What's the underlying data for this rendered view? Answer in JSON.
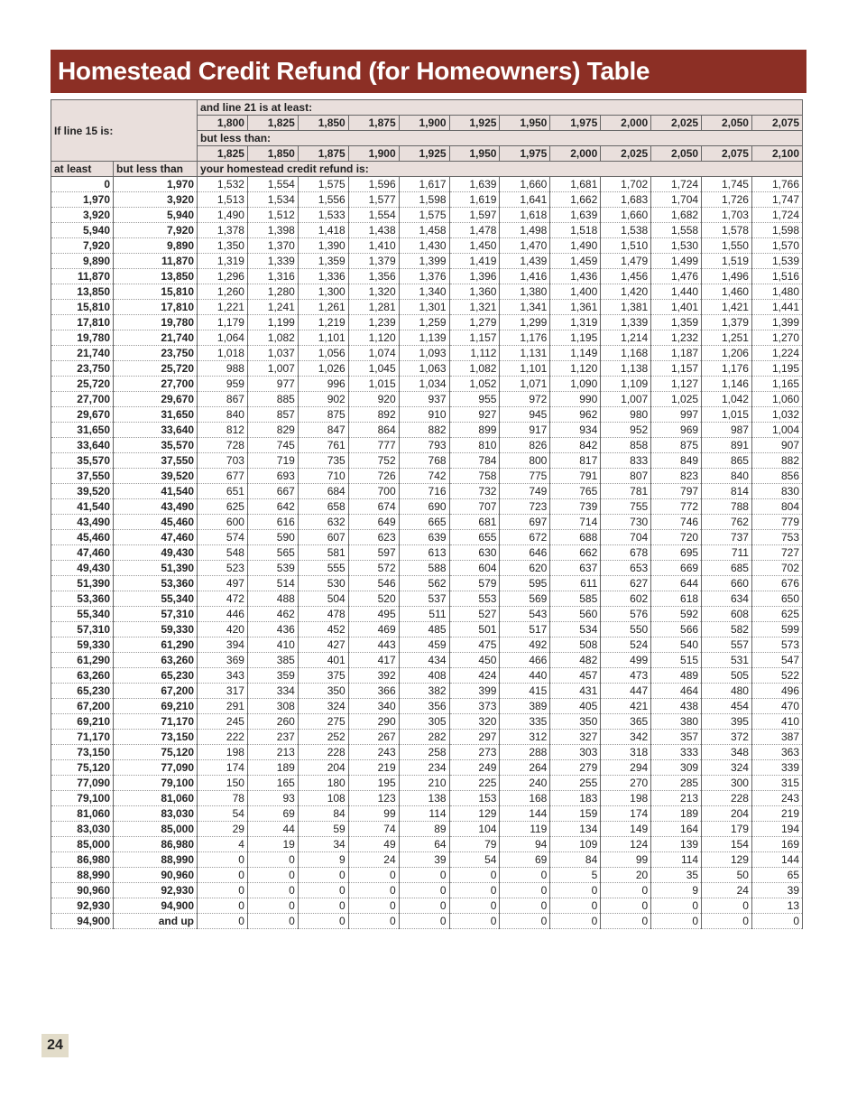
{
  "title": "Homestead Credit Refund (for Homeowners) Table",
  "header": {
    "line15_label": "If line 15 is:",
    "line21_label": "and line 21 is at least:",
    "but_less_than_label": "but less than:",
    "at_least_col": "at least",
    "but_less_than_col": "but less than",
    "refund_label": "your homestead credit refund is:",
    "line21_at_least": [
      "1,800",
      "1,825",
      "1,850",
      "1,875",
      "1,900",
      "1,925",
      "1,950",
      "1,975",
      "2,000",
      "2,025",
      "2,050",
      "2,075"
    ],
    "line21_less_than": [
      "1,825",
      "1,850",
      "1,875",
      "1,900",
      "1,925",
      "1,950",
      "1,975",
      "2,000",
      "2,025",
      "2,050",
      "2,075",
      "2,100"
    ]
  },
  "rows": [
    {
      "at_least": "0",
      "less_than": "1,970",
      "values": [
        "1,532",
        "1,554",
        "1,575",
        "1,596",
        "1,617",
        "1,639",
        "1,660",
        "1,681",
        "1,702",
        "1,724",
        "1,745",
        "1,766"
      ]
    },
    {
      "at_least": "1,970",
      "less_than": "3,920",
      "values": [
        "1,513",
        "1,534",
        "1,556",
        "1,577",
        "1,598",
        "1,619",
        "1,641",
        "1,662",
        "1,683",
        "1,704",
        "1,726",
        "1,747"
      ]
    },
    {
      "at_least": "3,920",
      "less_than": "5,940",
      "values": [
        "1,490",
        "1,512",
        "1,533",
        "1,554",
        "1,575",
        "1,597",
        "1,618",
        "1,639",
        "1,660",
        "1,682",
        "1,703",
        "1,724"
      ]
    },
    {
      "at_least": "5,940",
      "less_than": "7,920",
      "values": [
        "1,378",
        "1,398",
        "1,418",
        "1,438",
        "1,458",
        "1,478",
        "1,498",
        "1,518",
        "1,538",
        "1,558",
        "1,578",
        "1,598"
      ]
    },
    {
      "at_least": "7,920",
      "less_than": "9,890",
      "values": [
        "1,350",
        "1,370",
        "1,390",
        "1,410",
        "1,430",
        "1,450",
        "1,470",
        "1,490",
        "1,510",
        "1,530",
        "1,550",
        "1,570"
      ]
    },
    {
      "at_least": "9,890",
      "less_than": "11,870",
      "values": [
        "1,319",
        "1,339",
        "1,359",
        "1,379",
        "1,399",
        "1,419",
        "1,439",
        "1,459",
        "1,479",
        "1,499",
        "1,519",
        "1,539"
      ]
    },
    {
      "at_least": "11,870",
      "less_than": "13,850",
      "values": [
        "1,296",
        "1,316",
        "1,336",
        "1,356",
        "1,376",
        "1,396",
        "1,416",
        "1,436",
        "1,456",
        "1,476",
        "1,496",
        "1,516"
      ]
    },
    {
      "at_least": "13,850",
      "less_than": "15,810",
      "values": [
        "1,260",
        "1,280",
        "1,300",
        "1,320",
        "1,340",
        "1,360",
        "1,380",
        "1,400",
        "1,420",
        "1,440",
        "1,460",
        "1,480"
      ]
    },
    {
      "at_least": "15,810",
      "less_than": "17,810",
      "values": [
        "1,221",
        "1,241",
        "1,261",
        "1,281",
        "1,301",
        "1,321",
        "1,341",
        "1,361",
        "1,381",
        "1,401",
        "1,421",
        "1,441"
      ]
    },
    {
      "at_least": "17,810",
      "less_than": "19,780",
      "values": [
        "1,179",
        "1,199",
        "1,219",
        "1,239",
        "1,259",
        "1,279",
        "1,299",
        "1,319",
        "1,339",
        "1,359",
        "1,379",
        "1,399"
      ]
    },
    {
      "at_least": "19,780",
      "less_than": "21,740",
      "values": [
        "1,064",
        "1,082",
        "1,101",
        "1,120",
        "1,139",
        "1,157",
        "1,176",
        "1,195",
        "1,214",
        "1,232",
        "1,251",
        "1,270"
      ]
    },
    {
      "at_least": "21,740",
      "less_than": "23,750",
      "values": [
        "1,018",
        "1,037",
        "1,056",
        "1,074",
        "1,093",
        "1,112",
        "1,131",
        "1,149",
        "1,168",
        "1,187",
        "1,206",
        "1,224"
      ]
    },
    {
      "at_least": "23,750",
      "less_than": "25,720",
      "values": [
        "988",
        "1,007",
        "1,026",
        "1,045",
        "1,063",
        "1,082",
        "1,101",
        "1,120",
        "1,138",
        "1,157",
        "1,176",
        "1,195"
      ]
    },
    {
      "at_least": "25,720",
      "less_than": "27,700",
      "values": [
        "959",
        "977",
        "996",
        "1,015",
        "1,034",
        "1,052",
        "1,071",
        "1,090",
        "1,109",
        "1,127",
        "1,146",
        "1,165"
      ]
    },
    {
      "at_least": "27,700",
      "less_than": "29,670",
      "values": [
        "867",
        "885",
        "902",
        "920",
        "937",
        "955",
        "972",
        "990",
        "1,007",
        "1,025",
        "1,042",
        "1,060"
      ]
    },
    {
      "at_least": "29,670",
      "less_than": "31,650",
      "values": [
        "840",
        "857",
        "875",
        "892",
        "910",
        "927",
        "945",
        "962",
        "980",
        "997",
        "1,015",
        "1,032"
      ]
    },
    {
      "at_least": "31,650",
      "less_than": "33,640",
      "values": [
        "812",
        "829",
        "847",
        "864",
        "882",
        "899",
        "917",
        "934",
        "952",
        "969",
        "987",
        "1,004"
      ]
    },
    {
      "at_least": "33,640",
      "less_than": "35,570",
      "values": [
        "728",
        "745",
        "761",
        "777",
        "793",
        "810",
        "826",
        "842",
        "858",
        "875",
        "891",
        "907"
      ]
    },
    {
      "at_least": "35,570",
      "less_than": "37,550",
      "values": [
        "703",
        "719",
        "735",
        "752",
        "768",
        "784",
        "800",
        "817",
        "833",
        "849",
        "865",
        "882"
      ]
    },
    {
      "at_least": "37,550",
      "less_than": "39,520",
      "values": [
        "677",
        "693",
        "710",
        "726",
        "742",
        "758",
        "775",
        "791",
        "807",
        "823",
        "840",
        "856"
      ]
    },
    {
      "at_least": "39,520",
      "less_than": "41,540",
      "values": [
        "651",
        "667",
        "684",
        "700",
        "716",
        "732",
        "749",
        "765",
        "781",
        "797",
        "814",
        "830"
      ]
    },
    {
      "at_least": "41,540",
      "less_than": "43,490",
      "values": [
        "625",
        "642",
        "658",
        "674",
        "690",
        "707",
        "723",
        "739",
        "755",
        "772",
        "788",
        "804"
      ]
    },
    {
      "at_least": "43,490",
      "less_than": "45,460",
      "values": [
        "600",
        "616",
        "632",
        "649",
        "665",
        "681",
        "697",
        "714",
        "730",
        "746",
        "762",
        "779"
      ]
    },
    {
      "at_least": "45,460",
      "less_than": "47,460",
      "values": [
        "574",
        "590",
        "607",
        "623",
        "639",
        "655",
        "672",
        "688",
        "704",
        "720",
        "737",
        "753"
      ]
    },
    {
      "at_least": "47,460",
      "less_than": "49,430",
      "values": [
        "548",
        "565",
        "581",
        "597",
        "613",
        "630",
        "646",
        "662",
        "678",
        "695",
        "711",
        "727"
      ]
    },
    {
      "at_least": "49,430",
      "less_than": "51,390",
      "values": [
        "523",
        "539",
        "555",
        "572",
        "588",
        "604",
        "620",
        "637",
        "653",
        "669",
        "685",
        "702"
      ]
    },
    {
      "at_least": "51,390",
      "less_than": "53,360",
      "values": [
        "497",
        "514",
        "530",
        "546",
        "562",
        "579",
        "595",
        "611",
        "627",
        "644",
        "660",
        "676"
      ]
    },
    {
      "at_least": "53,360",
      "less_than": "55,340",
      "values": [
        "472",
        "488",
        "504",
        "520",
        "537",
        "553",
        "569",
        "585",
        "602",
        "618",
        "634",
        "650"
      ]
    },
    {
      "at_least": "55,340",
      "less_than": "57,310",
      "values": [
        "446",
        "462",
        "478",
        "495",
        "511",
        "527",
        "543",
        "560",
        "576",
        "592",
        "608",
        "625"
      ]
    },
    {
      "at_least": "57,310",
      "less_than": "59,330",
      "values": [
        "420",
        "436",
        "452",
        "469",
        "485",
        "501",
        "517",
        "534",
        "550",
        "566",
        "582",
        "599"
      ]
    },
    {
      "at_least": "59,330",
      "less_than": "61,290",
      "values": [
        "394",
        "410",
        "427",
        "443",
        "459",
        "475",
        "492",
        "508",
        "524",
        "540",
        "557",
        "573"
      ]
    },
    {
      "at_least": "61,290",
      "less_than": "63,260",
      "values": [
        "369",
        "385",
        "401",
        "417",
        "434",
        "450",
        "466",
        "482",
        "499",
        "515",
        "531",
        "547"
      ]
    },
    {
      "at_least": "63,260",
      "less_than": "65,230",
      "values": [
        "343",
        "359",
        "375",
        "392",
        "408",
        "424",
        "440",
        "457",
        "473",
        "489",
        "505",
        "522"
      ]
    },
    {
      "at_least": "65,230",
      "less_than": "67,200",
      "values": [
        "317",
        "334",
        "350",
        "366",
        "382",
        "399",
        "415",
        "431",
        "447",
        "464",
        "480",
        "496"
      ]
    },
    {
      "at_least": "67,200",
      "less_than": "69,210",
      "values": [
        "291",
        "308",
        "324",
        "340",
        "356",
        "373",
        "389",
        "405",
        "421",
        "438",
        "454",
        "470"
      ]
    },
    {
      "at_least": "69,210",
      "less_than": "71,170",
      "values": [
        "245",
        "260",
        "275",
        "290",
        "305",
        "320",
        "335",
        "350",
        "365",
        "380",
        "395",
        "410"
      ]
    },
    {
      "at_least": "71,170",
      "less_than": "73,150",
      "values": [
        "222",
        "237",
        "252",
        "267",
        "282",
        "297",
        "312",
        "327",
        "342",
        "357",
        "372",
        "387"
      ]
    },
    {
      "at_least": "73,150",
      "less_than": "75,120",
      "values": [
        "198",
        "213",
        "228",
        "243",
        "258",
        "273",
        "288",
        "303",
        "318",
        "333",
        "348",
        "363"
      ]
    },
    {
      "at_least": "75,120",
      "less_than": "77,090",
      "values": [
        "174",
        "189",
        "204",
        "219",
        "234",
        "249",
        "264",
        "279",
        "294",
        "309",
        "324",
        "339"
      ]
    },
    {
      "at_least": "77,090",
      "less_than": "79,100",
      "values": [
        "150",
        "165",
        "180",
        "195",
        "210",
        "225",
        "240",
        "255",
        "270",
        "285",
        "300",
        "315"
      ]
    },
    {
      "at_least": "79,100",
      "less_than": "81,060",
      "values": [
        "78",
        "93",
        "108",
        "123",
        "138",
        "153",
        "168",
        "183",
        "198",
        "213",
        "228",
        "243"
      ]
    },
    {
      "at_least": "81,060",
      "less_than": "83,030",
      "values": [
        "54",
        "69",
        "84",
        "99",
        "114",
        "129",
        "144",
        "159",
        "174",
        "189",
        "204",
        "219"
      ]
    },
    {
      "at_least": "83,030",
      "less_than": "85,000",
      "values": [
        "29",
        "44",
        "59",
        "74",
        "89",
        "104",
        "119",
        "134",
        "149",
        "164",
        "179",
        "194"
      ]
    },
    {
      "at_least": "85,000",
      "less_than": "86,980",
      "values": [
        "4",
        "19",
        "34",
        "49",
        "64",
        "79",
        "94",
        "109",
        "124",
        "139",
        "154",
        "169"
      ]
    },
    {
      "at_least": "86,980",
      "less_than": "88,990",
      "values": [
        "0",
        "0",
        "9",
        "24",
        "39",
        "54",
        "69",
        "84",
        "99",
        "114",
        "129",
        "144"
      ]
    },
    {
      "at_least": "88,990",
      "less_than": "90,960",
      "values": [
        "0",
        "0",
        "0",
        "0",
        "0",
        "0",
        "0",
        "5",
        "20",
        "35",
        "50",
        "65"
      ]
    },
    {
      "at_least": "90,960",
      "less_than": "92,930",
      "values": [
        "0",
        "0",
        "0",
        "0",
        "0",
        "0",
        "0",
        "0",
        "0",
        "9",
        "24",
        "39"
      ]
    },
    {
      "at_least": "92,930",
      "less_than": "94,900",
      "values": [
        "0",
        "0",
        "0",
        "0",
        "0",
        "0",
        "0",
        "0",
        "0",
        "0",
        "0",
        "13"
      ]
    },
    {
      "at_least": "94,900",
      "less_than": "and up",
      "values": [
        "0",
        "0",
        "0",
        "0",
        "0",
        "0",
        "0",
        "0",
        "0",
        "0",
        "0",
        "0"
      ]
    }
  ],
  "page_number": "24",
  "colors": {
    "title_bar": "#8c2f25",
    "header_bg": "#e9dfdc",
    "page_number_bg": "#e2dcc9"
  }
}
